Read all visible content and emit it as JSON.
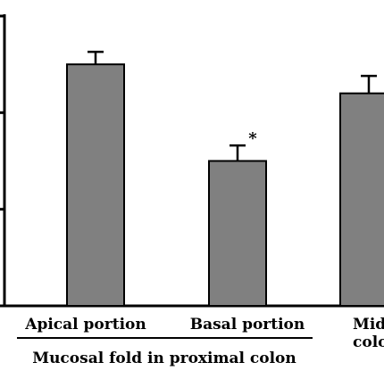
{
  "chart_data": {
    "type": "bar",
    "title": "",
    "xlabel": "",
    "ylabel": "",
    "ylim": [
      0,
      3
    ],
    "categories": [
      "Apical portion",
      "Basal portion",
      "Mid colo"
    ],
    "series": [
      {
        "values": [
          2.5,
          1.5,
          2.2
        ],
        "errors": [
          0.13,
          0.16,
          0.18
        ]
      }
    ],
    "annotations": [
      {
        "category_index": 1,
        "text": "*"
      }
    ],
    "group_label": "Mucosal fold in proximal colon",
    "group_categories": [
      0,
      1
    ],
    "colors": {
      "bar": "#808080",
      "bar_stroke": "#000000",
      "axis": "#000000"
    },
    "grid": false,
    "legend": "none"
  }
}
